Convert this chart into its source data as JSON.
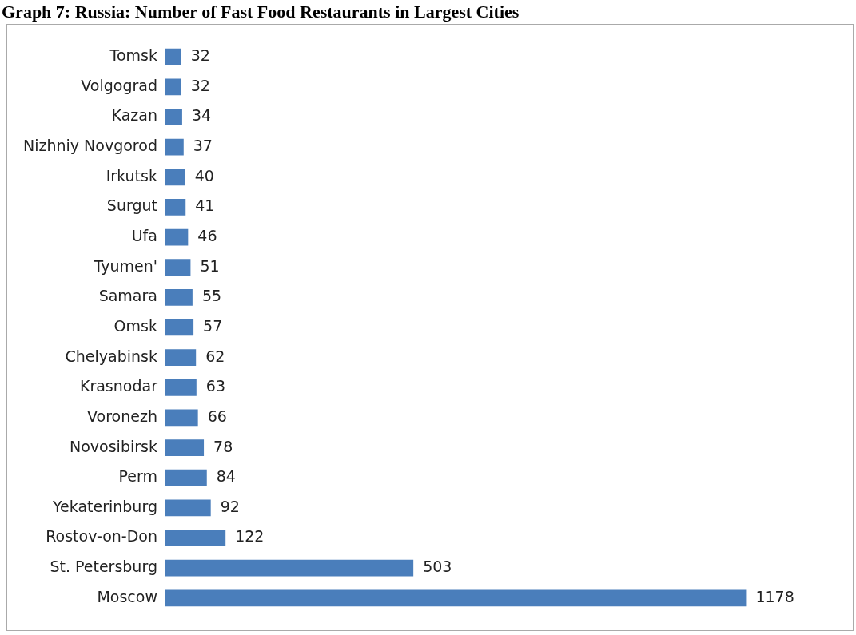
{
  "chart_data": {
    "type": "bar",
    "orientation": "horizontal",
    "title": "Graph 7: Russia: Number of Fast Food Restaurants in Largest Cities",
    "categories": [
      "Tomsk",
      "Volgograd",
      "Kazan",
      "Nizhniy Novgorod",
      "Irkutsk",
      "Surgut",
      "Ufa",
      "Tyumen'",
      "Samara",
      "Omsk",
      "Chelyabinsk",
      "Krasnodar",
      "Voronezh",
      "Novosibirsk",
      "Perm",
      "Yekaterinburg",
      "Rostov-on-Don",
      "St. Petersburg",
      "Moscow"
    ],
    "values": [
      32,
      32,
      34,
      37,
      40,
      41,
      46,
      51,
      55,
      57,
      62,
      63,
      66,
      78,
      84,
      92,
      122,
      503,
      1178
    ],
    "color": "#4a7ebb",
    "data_labels": true,
    "tick_labels": "y"
  }
}
